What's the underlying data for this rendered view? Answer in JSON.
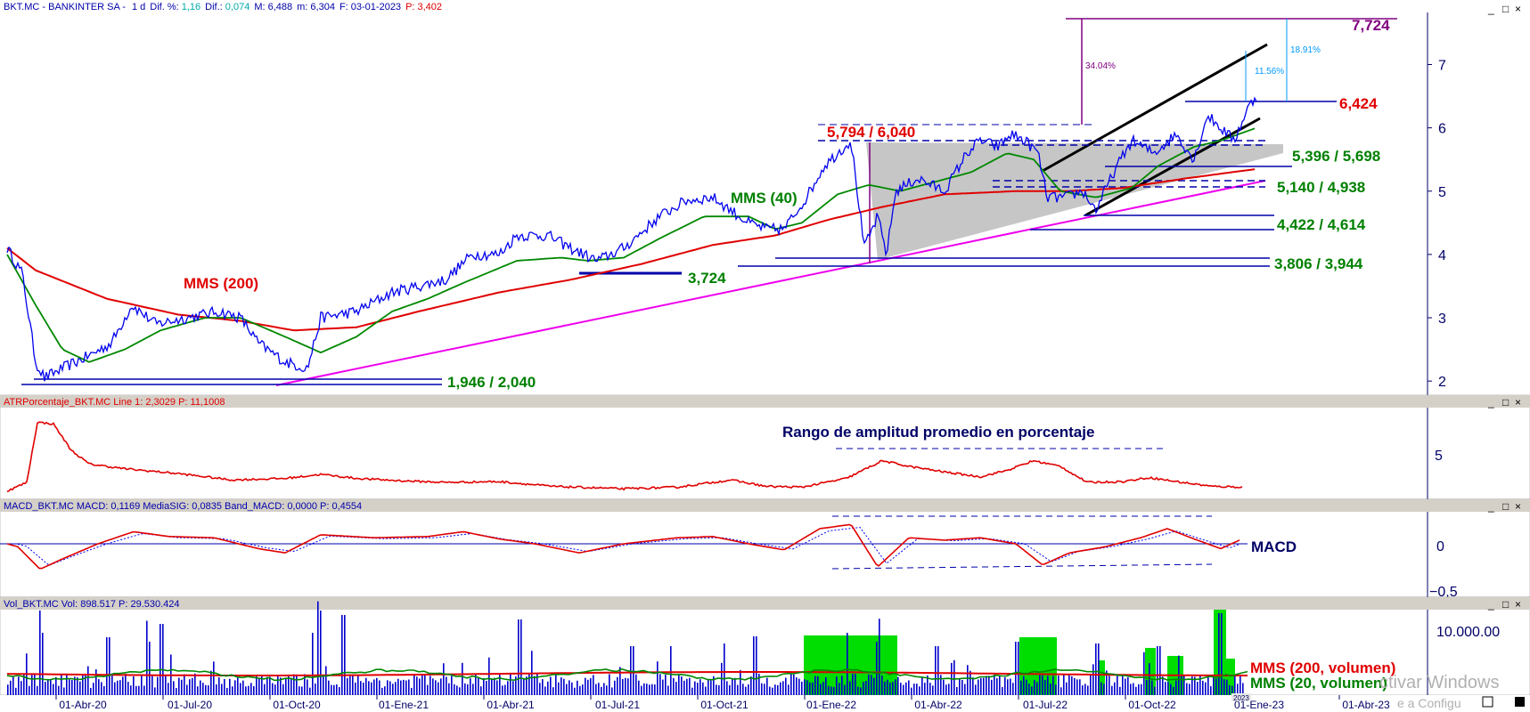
{
  "colors": {
    "price": "#0000ee",
    "mms200": "#e00000",
    "mms40": "#008800",
    "trend_magenta": "#ee00ee",
    "support_blue": "#0000aa",
    "purple": "#800080",
    "green_text": "#008000",
    "red_text": "#e00000",
    "atr": "#e00000",
    "macd_line": "#e00000",
    "macd_signal": "#0000ee",
    "volume": "#0000cc",
    "volume_highlight": "#00dd00",
    "triangle_fill": "#c0c0c0",
    "header_bar": "#d4d0c8",
    "axis_text": "#000066",
    "channel": "#000000"
  },
  "panels": {
    "price": {
      "header": {
        "symbol": "BKT.MC - BANKINTER SA -",
        "period": "1 d",
        "dif_pct_label": "Dif. %:",
        "dif_pct_value": "1,16",
        "dif_label": "Dif.:",
        "dif_value": "0,074",
        "max": "M: 6,488",
        "min": "m: 6,304",
        "date": "F: 03-01-2023",
        "p": "P: 3,402"
      },
      "yaxis_ticks": [
        "7",
        "6",
        "5",
        "4",
        "3",
        "2"
      ],
      "annotations": {
        "target_7724": "7,724",
        "level_6424": "6,424",
        "level_5794_6040": "5,794 / 6,040",
        "level_5396_5698": "5,396 / 5,698",
        "level_5140_4938": "5,140 / 4,938",
        "level_4422_4614": "4,422 / 4,614",
        "level_3806_3944": "3,806 / 3,944",
        "level_3724": "3,724",
        "level_1946_2040": "1,946 / 2,040",
        "mms200_label": "MMS (200)",
        "mms40_label": "MMS (40)",
        "pct_34": "34.04%",
        "pct_18": "18.91%",
        "pct_11": "11.56%"
      }
    },
    "atr": {
      "header": "ATRPorcentaje_BKT.MC  Line 1: 2,3029  P: 11,1008",
      "yaxis_ticks": [
        "5"
      ],
      "title": "Rango de amplitud promedio en porcentaje"
    },
    "macd": {
      "header": "MACD_BKT.MC  MACD: 0,1169  MediaSIG: 0,0835  Band_MACD: 0,0000  P: 0,4554",
      "yaxis_ticks": [
        "0",
        "−0,5"
      ],
      "title": "MACD"
    },
    "volume": {
      "header": "Vol_BKT.MC  Vol: 898.517  P: 29.530.424",
      "yaxis_ticks": [
        "10.000.00"
      ],
      "mms200_label": "MMS (200, volumen)",
      "mms20_label": "MMS (20, volumen)"
    }
  },
  "x_axis_dates": [
    "01-Abr-20",
    "01-Jul-20",
    "01-Oct-20",
    "01-Ene-21",
    "01-Abr-21",
    "01-Jul-21",
    "01-Oct-21",
    "01-Ene-22",
    "01-Abr-22",
    "01-Jul-22",
    "01-Oct-22",
    "01-Ene-23",
    "01-Abr-23"
  ],
  "x_axis_year_badge": "2023",
  "watermark": {
    "line1": "ctivar Windows",
    "line2": "e a Configu"
  },
  "window_buttons": [
    "_",
    "□",
    "×"
  ],
  "chart_data": [
    {
      "type": "line",
      "title": "BKT.MC - BANKINTER SA - 1 d",
      "x": [
        "01-Abr-20",
        "01-Jul-20",
        "01-Oct-20",
        "01-Ene-21",
        "01-Abr-21",
        "01-Jul-21",
        "01-Oct-21",
        "01-Ene-22",
        "01-Abr-22",
        "01-Jul-22",
        "01-Oct-22",
        "01-Ene-23"
      ],
      "series": [
        {
          "name": "",
          "values": [
            2.3,
            3.0,
            2.2,
            3.2,
            4.2,
            3.9,
            4.5,
            5.5,
            5.6,
            4.7,
            5.9,
            6.4
          ]
        },
        {
          "name": "MMS (200)",
          "values": [
            3.7,
            3.2,
            2.9,
            3.2,
            3.5,
            3.8,
            4.2,
            4.9,
            5.0,
            5.0,
            5.3,
            5.5
          ]
        },
        {
          "name": "MMS (40)",
          "values": [
            2.6,
            3.0,
            2.4,
            3.3,
            4.0,
            3.9,
            4.7,
            5.4,
            5.5,
            4.8,
            5.8,
            6.0
          ]
        }
      ],
      "horizontal_levels": [
        7.724,
        6.424,
        6.04,
        5.794,
        5.698,
        5.396,
        5.14,
        4.938,
        4.614,
        4.422,
        3.944,
        3.806,
        3.724,
        2.04,
        1.946
      ],
      "ylim": [
        1.8,
        7.8
      ],
      "grid": false
    },
    {
      "type": "line",
      "title": "ATRPorcentaje_BKT.MC",
      "series": [
        {
          "name": "Line 1",
          "values": [
            2.3,
            11.0,
            6.0,
            3.8,
            3.0,
            2.6,
            3.2,
            5.8,
            4.0,
            5.6,
            3.4,
            2.3
          ]
        }
      ]
    },
    {
      "type": "line",
      "title": "MACD_BKT.MC",
      "series": [
        {
          "name": "MACD",
          "values": [
            0.0,
            -0.45,
            0.05,
            0.15,
            0.1,
            -0.1,
            0.1,
            0.25,
            -0.3,
            0.1,
            -0.28,
            0.12
          ]
        },
        {
          "name": "MediaSIG",
          "values": [
            0.0,
            -0.4,
            0.03,
            0.12,
            0.09,
            -0.08,
            0.08,
            0.2,
            -0.25,
            0.08,
            -0.22,
            0.08
          ]
        }
      ]
    },
    {
      "type": "bar",
      "title": "Vol_BKT.MC",
      "series": [
        {
          "name": "Vol",
          "values": []
        }
      ],
      "ylabel": ""
    }
  ]
}
